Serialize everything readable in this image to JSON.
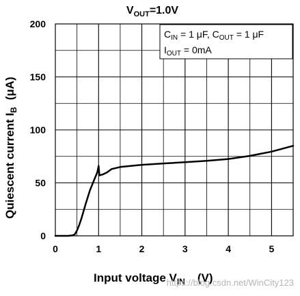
{
  "chart_data": {
    "type": "line",
    "title": "VOUT=1.0V",
    "title_parts": {
      "main": "V",
      "sub": "OUT",
      "rest": "=1.0V"
    },
    "xlabel_parts": {
      "main": "Input voltage V",
      "sub": "IN",
      "rest": "(V)"
    },
    "ylabel_parts": {
      "main": "Quiescent current I",
      "sub": "B",
      "rest": "(μA)"
    },
    "xlim": [
      0,
      5.5
    ],
    "ylim": [
      0,
      200
    ],
    "xticks": [
      0,
      1,
      2,
      3,
      4,
      5
    ],
    "yticks": [
      0,
      50,
      100,
      150,
      200
    ],
    "x_minor_step": 0.5,
    "y_minor_step": 25,
    "grid": true,
    "annotations": {
      "line1": {
        "p1": "C",
        "p1sub": "IN",
        "p2": " = 1 μF, C",
        "p2sub": "OUT",
        "p3": " = 1 μF"
      },
      "line2": {
        "p1": "I",
        "p1sub": "OUT",
        "p2": " = 0mA"
      },
      "placement": "top-right"
    },
    "series": [
      {
        "x": [
          0,
          0.3,
          0.4,
          0.45,
          0.5,
          0.55,
          0.6,
          0.7,
          0.8,
          0.9,
          0.97,
          1.0,
          1.02,
          1.1,
          1.2,
          1.3,
          1.5,
          2.0,
          2.5,
          3.0,
          3.5,
          4.0,
          4.5,
          5.0,
          5.5
        ],
        "y": [
          0,
          0,
          0.5,
          1.5,
          5,
          10,
          16,
          30,
          43,
          53,
          60,
          66,
          57,
          58,
          60,
          63,
          65,
          67,
          68.3,
          69.5,
          70.8,
          72.5,
          75.5,
          79.5,
          85
        ]
      }
    ]
  },
  "watermark": "https://blog.csdn.net/WinCity123"
}
